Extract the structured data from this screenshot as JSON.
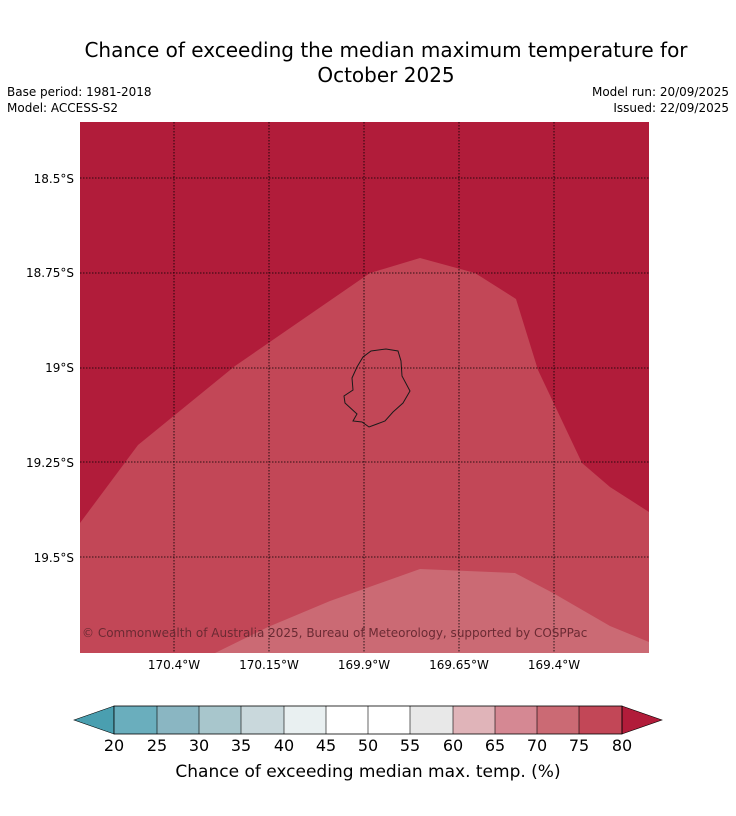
{
  "title": {
    "line1": "Chance of exceeding the median maximum temperature for",
    "line2": "October 2025"
  },
  "meta": {
    "base_period": "Base period: 1981-2018",
    "model": "Model: ACCESS-S2",
    "model_run": "Model run: 20/09/2025",
    "issued": "Issued: 22/09/2025"
  },
  "map": {
    "latitude_labels": [
      "18.5°S",
      "18.75°S",
      "19°S",
      "19.25°S",
      "19.5°S"
    ],
    "longitude_labels": [
      "170.4°W",
      "170.15°W",
      "169.9°W",
      "169.65°W",
      "169.4°W"
    ],
    "copyright": "© Commonwealth of Australia 2025, Bureau of Meteorology, supported by COSPPac",
    "region_colors": {
      "above_80": "#b11c3a",
      "75_to_80": "#c24757",
      "70_to_75": "#cb6a74"
    }
  },
  "colorbar": {
    "ticks": [
      "20",
      "25",
      "30",
      "35",
      "40",
      "45",
      "50",
      "55",
      "60",
      "65",
      "70",
      "75",
      "80"
    ],
    "colors": [
      "#4a9fb0",
      "#6aaebd",
      "#8ab6c2",
      "#a8c6cc",
      "#c9d8dc",
      "#e9f0f1",
      "#ffffff",
      "#ffffff",
      "#e8e8e8",
      "#e0b4b9",
      "#d58893",
      "#cb6a74",
      "#c24757",
      "#b11c3a"
    ],
    "label": "Chance of exceeding median max. temp. (%)"
  }
}
